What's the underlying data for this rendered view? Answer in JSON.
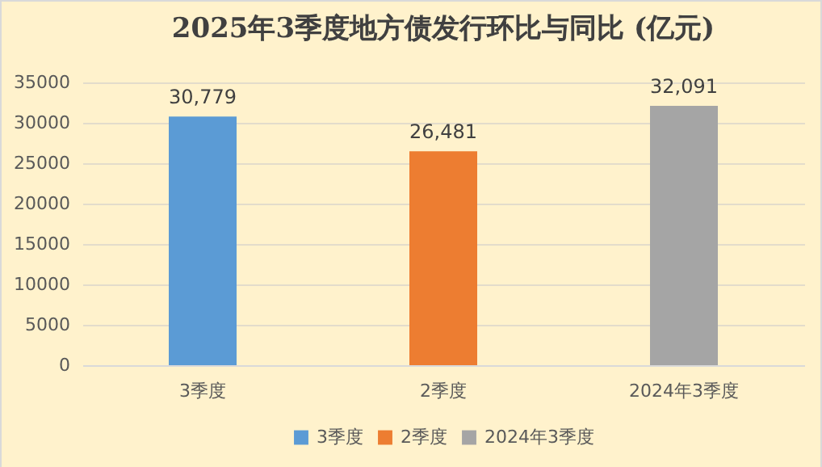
{
  "chart_data": {
    "type": "bar",
    "title": "2025年3季度地方债发行环比与同比 (亿元)",
    "categories": [
      "3季度",
      "2季度",
      "2024年3季度"
    ],
    "series": [
      {
        "name": "3季度",
        "color": "#5b9bd5",
        "values": [
          30779,
          null,
          null
        ],
        "value_labels": [
          "30,779",
          null,
          null
        ]
      },
      {
        "name": "2季度",
        "color": "#ed7d31",
        "values": [
          null,
          26481,
          null
        ],
        "value_labels": [
          null,
          "26,481",
          null
        ]
      },
      {
        "name": "2024年3季度",
        "color": "#a5a5a5",
        "values": [
          null,
          null,
          32091
        ],
        "value_labels": [
          null,
          null,
          "32,091"
        ]
      }
    ],
    "ylim": [
      0,
      35000
    ],
    "yticks": [
      0,
      5000,
      10000,
      15000,
      20000,
      25000,
      30000,
      35000
    ],
    "grid": "y",
    "legend": "bottom"
  }
}
